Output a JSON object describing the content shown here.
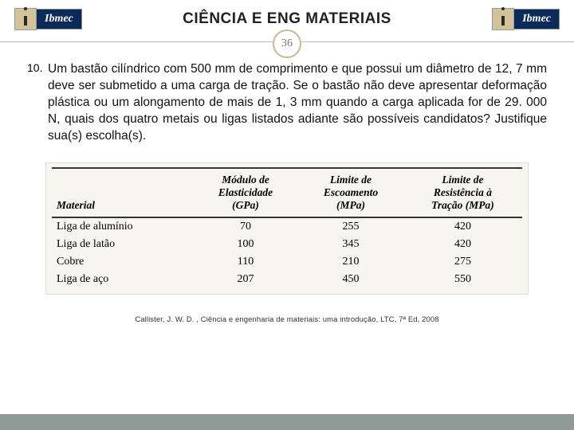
{
  "header": {
    "logo_text": "Ibmec",
    "title": "CIÊNCIA E ENG MATERIAIS"
  },
  "page_number": "36",
  "question": {
    "number": "10.",
    "text": "Um bastão cilíndrico com 500 mm de comprimento e que possui um diâmetro de 12, 7 mm deve ser submetido a uma carga de tração. Se o bastão não deve apresentar deformação plástica ou um alongamento de mais de 1, 3 mm quando a carga aplicada for de 29. 000 N, quais dos quatro metais ou ligas listados adiante são possíveis candidatos? Justifique sua(s) escolha(s)."
  },
  "table": {
    "columns": [
      "Material",
      "Módulo de Elasticidade (GPa)",
      "Limite de Escoamento (MPa)",
      "Limite de Resistência à Tração (MPa)"
    ],
    "rows": [
      [
        "Liga de alumínio",
        "70",
        "255",
        "420"
      ],
      [
        "Liga de latão",
        "100",
        "345",
        "420"
      ],
      [
        "Cobre",
        "110",
        "210",
        "275"
      ],
      [
        "Liga de aço",
        "207",
        "450",
        "550"
      ]
    ],
    "background_color": "#f7f5f0",
    "header_font_style": "italic bold",
    "border_color": "#333333"
  },
  "citation": "Callister, J. W. D. , Ciência e engenharia de materiais: uma introdução, LTC, 7ª Ed, 2008",
  "colors": {
    "logo_i_bg": "#d4c398",
    "logo_bar_bg": "#0a2a5a",
    "page_circle_border": "#c9b893",
    "bottom_bar": "#8f9a97"
  }
}
